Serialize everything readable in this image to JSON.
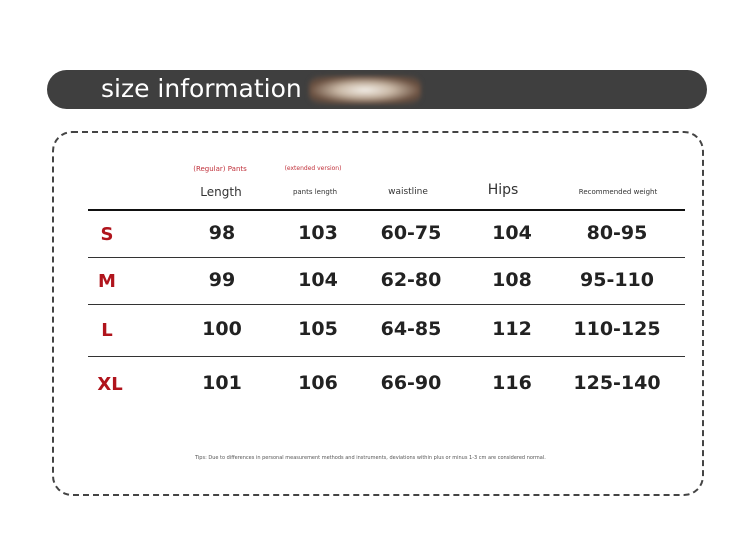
{
  "banner": {
    "title": "size information"
  },
  "table": {
    "subheaders": {
      "length": "(Regular) Pants",
      "pants_length": "(extended version)"
    },
    "headers": [
      "Length",
      "pants length",
      "waistline",
      "Hips",
      "Recommended weight"
    ],
    "rows": [
      {
        "size": "S",
        "values": [
          "98",
          "103",
          "60-75",
          "104",
          "80-95"
        ]
      },
      {
        "size": "M",
        "values": [
          "99",
          "104",
          "62-80",
          "108",
          "95-110"
        ]
      },
      {
        "size": "L",
        "values": [
          "100",
          "105",
          "64-85",
          "112",
          "110-125"
        ]
      },
      {
        "size": "XL",
        "values": [
          "101",
          "106",
          "66-90",
          "116",
          "125-140"
        ]
      }
    ]
  },
  "tip": "Tips: Due to differences in personal measurement methods and instruments, deviations within plus or minus 1-3 cm are considered normal.",
  "colors": {
    "banner": "#3f3f3f",
    "size_label": "#b0141c",
    "subheader": "#c0303a"
  }
}
